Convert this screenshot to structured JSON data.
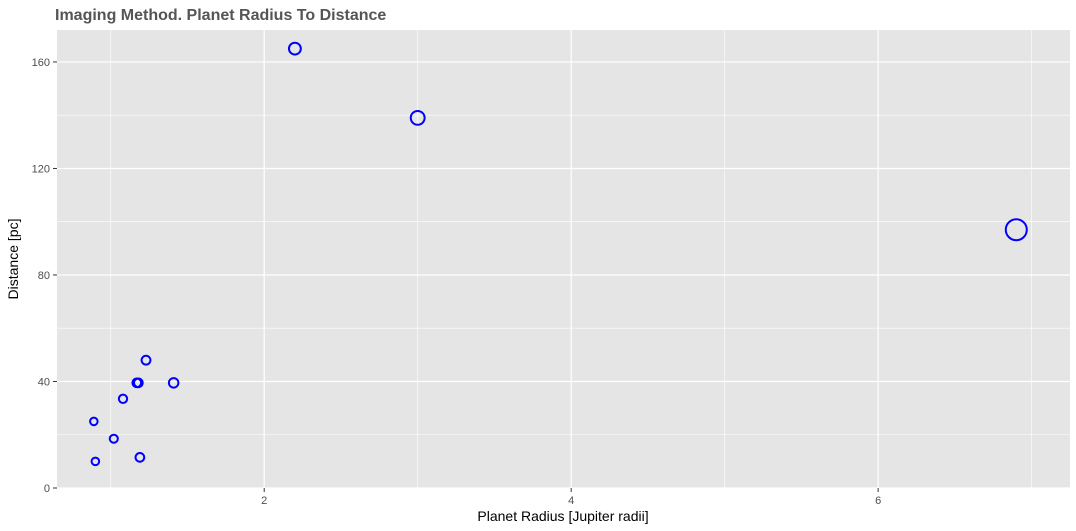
{
  "chart_data": {
    "type": "scatter",
    "title": "Imaging Method. Planet Radius To Distance",
    "xlabel": "Planet Radius [Jupiter radii]",
    "ylabel": "Distance [pc]",
    "xlim": [
      0.65,
      7.25
    ],
    "ylim": [
      0,
      172
    ],
    "x_ticks": [
      2,
      4,
      6
    ],
    "y_ticks": [
      0,
      40,
      80,
      120,
      160
    ],
    "grid": true,
    "marker": "open-circle",
    "marker_size_encodes": "planet radius",
    "point_color": "#0000ff",
    "panel_color": "#e5e5e5",
    "grid_color": "#ffffff",
    "points": [
      {
        "x": 0.89,
        "y": 25
      },
      {
        "x": 0.9,
        "y": 10
      },
      {
        "x": 1.02,
        "y": 18.5
      },
      {
        "x": 1.08,
        "y": 33.5
      },
      {
        "x": 1.17,
        "y": 39.5
      },
      {
        "x": 1.18,
        "y": 39.5
      },
      {
        "x": 1.19,
        "y": 11.5
      },
      {
        "x": 1.23,
        "y": 48
      },
      {
        "x": 1.41,
        "y": 39.5
      },
      {
        "x": 2.2,
        "y": 165
      },
      {
        "x": 3.0,
        "y": 139
      },
      {
        "x": 6.9,
        "y": 97
      }
    ]
  }
}
